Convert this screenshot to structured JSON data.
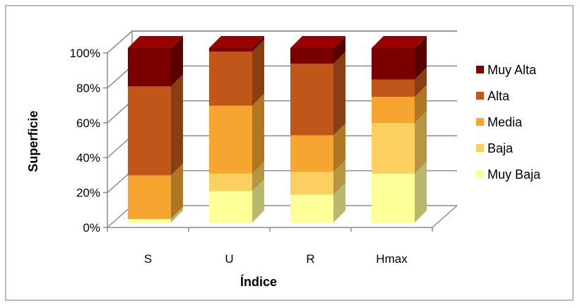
{
  "chart_data": {
    "type": "bar",
    "stacked": true,
    "percent": true,
    "three_d": true,
    "title": "",
    "xlabel": "Índice",
    "ylabel": "Superficie",
    "ylim": [
      0,
      100
    ],
    "yticks": [
      "0%",
      "20%",
      "40%",
      "60%",
      "80%",
      "100%"
    ],
    "categories": [
      "S",
      "U",
      "R",
      "Hmax"
    ],
    "series": [
      {
        "name": "Muy Baja",
        "color": "#ffff99",
        "values": [
          2,
          18,
          16,
          28
        ]
      },
      {
        "name": "Baja",
        "color": "#fcd060",
        "values": [
          0,
          10,
          13,
          29
        ]
      },
      {
        "name": "Media",
        "color": "#f5a530",
        "values": [
          25,
          39,
          21,
          15
        ]
      },
      {
        "name": "Alta",
        "color": "#c0561a",
        "values": [
          51,
          31,
          41,
          10
        ]
      },
      {
        "name": "Muy Alta",
        "color": "#7a0000",
        "values": [
          22,
          2,
          9,
          18
        ]
      }
    ],
    "legend_position": "right",
    "grid": true
  }
}
